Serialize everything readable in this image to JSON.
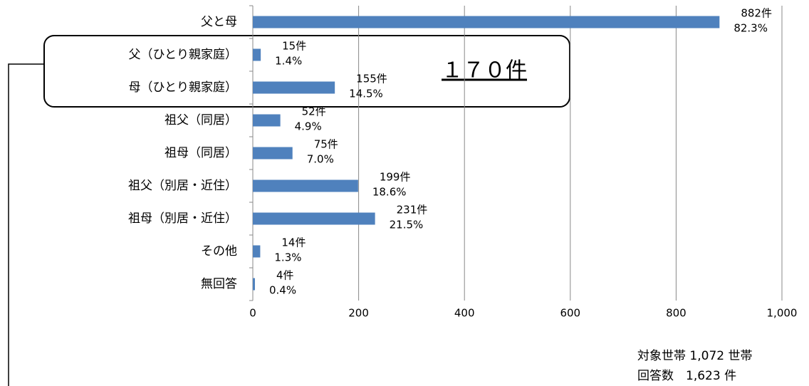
{
  "chart_data": {
    "type": "barh",
    "categories": [
      "父と母",
      "父（ひとり親家庭）",
      "母（ひとり親家庭）",
      "祖父（同居）",
      "祖母（同居）",
      "祖父（別居・近住）",
      "祖母（別居・近住）",
      "その他",
      "無回答"
    ],
    "values": [
      882,
      15,
      155,
      52,
      75,
      199,
      231,
      14,
      4
    ],
    "value_labels": [
      "882件",
      "15件",
      "155件",
      "52件",
      "75件",
      "199件",
      "231件",
      "14件",
      "4件"
    ],
    "share_labels": [
      "82.3%",
      "1.4%",
      "14.5%",
      "4.9%",
      "7.0%",
      "18.6%",
      "21.5%",
      "1.3%",
      "0.4%"
    ],
    "color": "#4f81bd",
    "xlim": [
      0,
      1000
    ],
    "xticks": [
      0,
      200,
      400,
      600,
      800,
      {
        "value": 1000,
        "label": "1,000"
      }
    ],
    "grid": true,
    "annotation": "１７０件",
    "notes": [
      "対象世帯 1,072 世帯",
      "回答数　1,623 件"
    ]
  }
}
